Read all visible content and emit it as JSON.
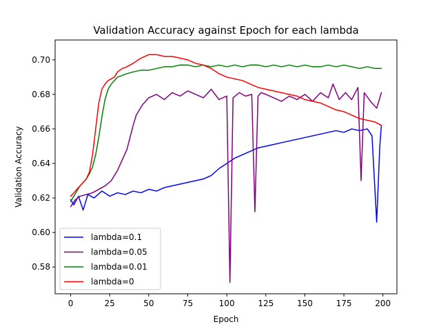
{
  "chart_data": {
    "type": "line",
    "title": "Validation Accuracy against Epoch for each lambda",
    "xlabel": "Epoch",
    "ylabel": "Validation Accuracy",
    "xlim": [
      -9.95,
      208.95
    ],
    "ylim": [
      0.5645,
      0.7115
    ],
    "xticks": [
      0,
      25,
      50,
      75,
      100,
      125,
      150,
      175,
      200
    ],
    "yticks": [
      0.58,
      0.6,
      0.62,
      0.64,
      0.66,
      0.68,
      0.7
    ],
    "grid": false,
    "legend_position": "lower-left",
    "series": [
      {
        "name": "lambda=0.1",
        "color": "#0000ff",
        "x": [
          0,
          2,
          5,
          8,
          11,
          15,
          20,
          25,
          30,
          35,
          40,
          45,
          50,
          55,
          60,
          65,
          70,
          75,
          80,
          85,
          90,
          95,
          100,
          105,
          110,
          115,
          120,
          125,
          130,
          135,
          140,
          145,
          150,
          155,
          160,
          165,
          170,
          175,
          180,
          185,
          190,
          193,
          196,
          198,
          199
        ],
        "y": [
          0.619,
          0.616,
          0.621,
          0.613,
          0.622,
          0.62,
          0.624,
          0.621,
          0.623,
          0.622,
          0.624,
          0.623,
          0.625,
          0.624,
          0.626,
          0.627,
          0.628,
          0.629,
          0.63,
          0.631,
          0.633,
          0.637,
          0.64,
          0.643,
          0.645,
          0.647,
          0.649,
          0.65,
          0.651,
          0.652,
          0.653,
          0.654,
          0.655,
          0.656,
          0.657,
          0.658,
          0.659,
          0.658,
          0.66,
          0.659,
          0.66,
          0.656,
          0.606,
          0.65,
          0.662
        ]
      },
      {
        "name": "lambda=0.05",
        "color": "#800080",
        "x": [
          0,
          3,
          6,
          10,
          14,
          18,
          22,
          26,
          30,
          33,
          36,
          38,
          40,
          42,
          44,
          46,
          50,
          55,
          60,
          65,
          70,
          75,
          80,
          85,
          90,
          95,
          100,
          102,
          104,
          108,
          112,
          116,
          118,
          120,
          122,
          125,
          130,
          135,
          140,
          145,
          150,
          155,
          160,
          165,
          168,
          172,
          176,
          180,
          184,
          186,
          188,
          192,
          196,
          199
        ],
        "y": [
          0.615,
          0.619,
          0.621,
          0.622,
          0.623,
          0.625,
          0.627,
          0.63,
          0.636,
          0.642,
          0.648,
          0.655,
          0.662,
          0.668,
          0.671,
          0.674,
          0.678,
          0.68,
          0.677,
          0.681,
          0.679,
          0.682,
          0.68,
          0.678,
          0.683,
          0.677,
          0.679,
          0.571,
          0.678,
          0.681,
          0.679,
          0.68,
          0.612,
          0.679,
          0.681,
          0.68,
          0.678,
          0.676,
          0.679,
          0.677,
          0.68,
          0.676,
          0.681,
          0.678,
          0.686,
          0.677,
          0.681,
          0.677,
          0.684,
          0.63,
          0.681,
          0.676,
          0.672,
          0.681
        ]
      },
      {
        "name": "lambda=0.01",
        "color": "#008000",
        "x": [
          0,
          2,
          4,
          6,
          8,
          10,
          12,
          14,
          16,
          18,
          20,
          22,
          24,
          26,
          28,
          30,
          33,
          36,
          40,
          45,
          50,
          55,
          60,
          65,
          70,
          75,
          80,
          85,
          90,
          95,
          100,
          105,
          110,
          115,
          120,
          125,
          130,
          135,
          140,
          145,
          150,
          155,
          160,
          165,
          170,
          175,
          180,
          185,
          190,
          195,
          199
        ],
        "y": [
          0.618,
          0.621,
          0.624,
          0.627,
          0.629,
          0.631,
          0.634,
          0.638,
          0.645,
          0.655,
          0.667,
          0.677,
          0.683,
          0.686,
          0.688,
          0.69,
          0.691,
          0.692,
          0.693,
          0.694,
          0.694,
          0.695,
          0.696,
          0.696,
          0.697,
          0.697,
          0.696,
          0.697,
          0.696,
          0.697,
          0.696,
          0.697,
          0.696,
          0.697,
          0.697,
          0.696,
          0.697,
          0.696,
          0.697,
          0.696,
          0.697,
          0.696,
          0.696,
          0.697,
          0.696,
          0.697,
          0.696,
          0.695,
          0.696,
          0.695,
          0.695
        ]
      },
      {
        "name": "lambda=0",
        "color": "#ff0000",
        "x": [
          0,
          2,
          4,
          6,
          8,
          10,
          12,
          14,
          16,
          18,
          20,
          22,
          24,
          26,
          28,
          30,
          33,
          36,
          40,
          45,
          50,
          55,
          60,
          65,
          70,
          75,
          80,
          85,
          90,
          95,
          100,
          105,
          110,
          115,
          120,
          125,
          130,
          135,
          140,
          145,
          150,
          155,
          160,
          165,
          170,
          175,
          180,
          185,
          190,
          195,
          199
        ],
        "y": [
          0.621,
          0.623,
          0.625,
          0.627,
          0.629,
          0.631,
          0.635,
          0.645,
          0.66,
          0.675,
          0.683,
          0.686,
          0.688,
          0.689,
          0.69,
          0.693,
          0.695,
          0.696,
          0.698,
          0.701,
          0.703,
          0.703,
          0.702,
          0.702,
          0.701,
          0.7,
          0.698,
          0.697,
          0.695,
          0.692,
          0.69,
          0.689,
          0.688,
          0.686,
          0.684,
          0.683,
          0.682,
          0.681,
          0.68,
          0.679,
          0.677,
          0.676,
          0.675,
          0.673,
          0.671,
          0.67,
          0.668,
          0.666,
          0.665,
          0.664,
          0.662
        ]
      }
    ]
  }
}
